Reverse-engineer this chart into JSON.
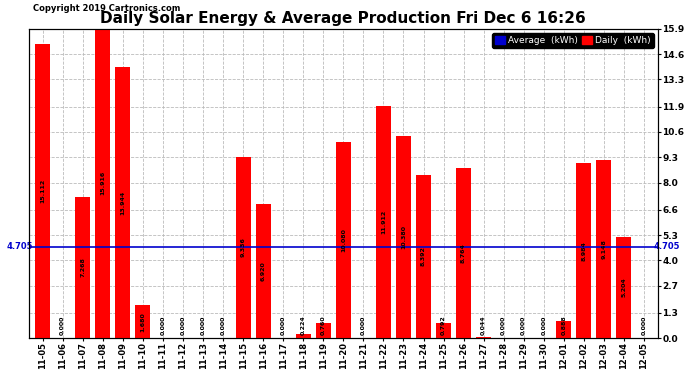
{
  "title": "Daily Solar Energy & Average Production Fri Dec 6 16:26",
  "copyright": "Copyright 2019 Cartronics.com",
  "categories": [
    "11-05",
    "11-06",
    "11-07",
    "11-08",
    "11-09",
    "11-10",
    "11-11",
    "11-12",
    "11-13",
    "11-14",
    "11-15",
    "11-16",
    "11-17",
    "11-18",
    "11-19",
    "11-20",
    "11-21",
    "11-22",
    "11-23",
    "11-24",
    "11-25",
    "11-26",
    "11-27",
    "11-28",
    "11-29",
    "11-30",
    "12-01",
    "12-02",
    "12-03",
    "12-04",
    "12-05"
  ],
  "values": [
    15.112,
    0.0,
    7.268,
    15.916,
    13.944,
    1.68,
    0.0,
    0.0,
    0.0,
    0.0,
    9.336,
    6.92,
    0.0,
    0.224,
    0.76,
    10.08,
    0.0,
    11.912,
    10.38,
    8.392,
    0.792,
    8.764,
    0.044,
    0.0,
    0.0,
    0.0,
    0.888,
    8.984,
    9.148,
    5.204,
    0.0
  ],
  "average": 4.705,
  "bar_color": "#ff0000",
  "average_line_color": "#0000cd",
  "background_color": "#ffffff",
  "plot_bg_color": "#ffffff",
  "grid_color": "#bbbbbb",
  "title_fontsize": 11,
  "ylabel_right": [
    "0.0",
    "1.3",
    "2.7",
    "4.0",
    "5.3",
    "6.6",
    "8.0",
    "9.3",
    "10.6",
    "11.9",
    "13.3",
    "14.6",
    "15.9"
  ],
  "yticks": [
    0.0,
    1.3,
    2.7,
    4.0,
    5.3,
    6.6,
    8.0,
    9.3,
    10.6,
    11.9,
    13.3,
    14.6,
    15.9
  ],
  "legend_avg_color": "#0000cd",
  "legend_daily_color": "#ff0000",
  "legend_avg_label": "Average  (kWh)",
  "legend_daily_label": "Daily  (kWh)"
}
